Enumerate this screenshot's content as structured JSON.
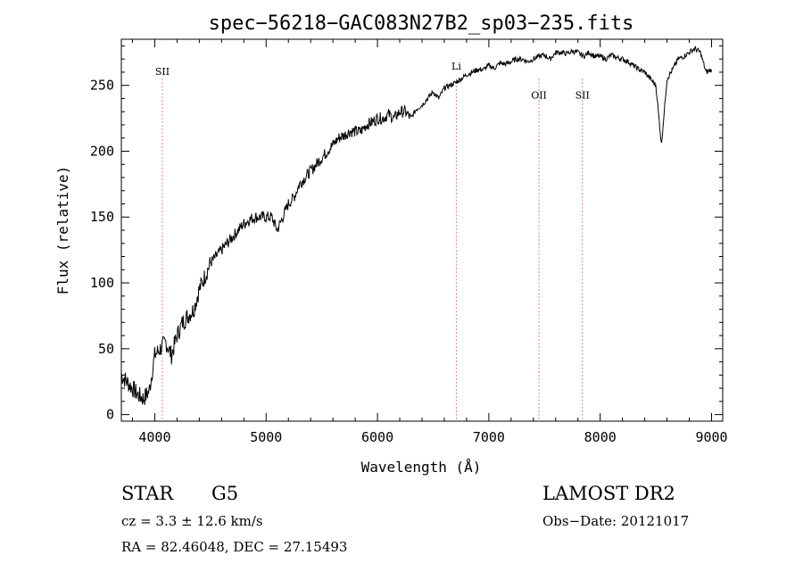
{
  "chart_data": {
    "type": "line",
    "title": "spec−56218−GAC083N27B2_sp03−235.fits",
    "xlabel": "Wavelength (Å)",
    "ylabel": "Flux (relative)",
    "xlim": [
      3700,
      9100
    ],
    "ylim": [
      -5,
      285
    ],
    "x_ticks": [
      4000,
      5000,
      6000,
      7000,
      8000,
      9000
    ],
    "y_ticks": [
      0,
      50,
      100,
      150,
      200,
      250
    ],
    "grid": false,
    "series": [
      {
        "x": [
          3700,
          3750,
          3800,
          3850,
          3900,
          3950,
          4000,
          4050,
          4100,
          4150,
          4200,
          4250,
          4300,
          4350,
          4400,
          4450,
          4500,
          4550,
          4600,
          4650,
          4700,
          4750,
          4800,
          4850,
          4900,
          4950,
          5000,
          5050,
          5100,
          5150,
          5200,
          5250,
          5300,
          5350,
          5400,
          5450,
          5500,
          5550,
          5600,
          5650,
          5700,
          5750,
          5800,
          5850,
          5900,
          5950,
          6000,
          6050,
          6100,
          6150,
          6200,
          6250,
          6300,
          6350,
          6400,
          6450,
          6500,
          6550,
          6600,
          6650,
          6700,
          6750,
          6800,
          6850,
          6900,
          6950,
          7000,
          7050,
          7100,
          7150,
          7200,
          7250,
          7300,
          7350,
          7400,
          7450,
          7500,
          7550,
          7600,
          7650,
          7700,
          7750,
          7800,
          7850,
          7900,
          7950,
          8000,
          8050,
          8100,
          8150,
          8200,
          8250,
          8300,
          8350,
          8400,
          8450,
          8500,
          8550,
          8600,
          8650,
          8700,
          8750,
          8800,
          8850,
          8900,
          8950,
          9000
        ],
        "y": [
          30,
          25,
          20,
          15,
          12,
          18,
          45,
          50,
          55,
          45,
          60,
          70,
          75,
          80,
          95,
          105,
          115,
          120,
          125,
          130,
          135,
          140,
          145,
          148,
          150,
          150,
          150,
          150,
          140,
          150,
          160,
          165,
          175,
          180,
          185,
          190,
          195,
          200,
          205,
          210,
          212,
          215,
          215,
          215,
          220,
          222,
          225,
          225,
          228,
          225,
          230,
          230,
          225,
          232,
          235,
          240,
          245,
          240,
          248,
          250,
          252,
          255,
          258,
          260,
          262,
          262,
          265,
          263,
          267,
          266,
          268,
          270,
          270,
          268,
          270,
          272,
          273,
          270,
          275,
          275,
          274,
          276,
          275,
          272,
          275,
          272,
          272,
          270,
          273,
          271,
          270,
          268,
          265,
          262,
          260,
          255,
          250,
          205,
          255,
          262,
          270,
          272,
          275,
          278,
          275,
          260,
          262
        ]
      }
    ],
    "annotations": [
      {
        "label": "SII",
        "x": 4068,
        "y": 258
      },
      {
        "label": "Li",
        "x": 6708,
        "y": 262
      },
      {
        "label": "OII",
        "x": 7450,
        "y": 240
      },
      {
        "label": "SII",
        "x": 7840,
        "y": 240
      }
    ],
    "annotation_lines": [
      4068,
      6708,
      7450,
      7840
    ]
  },
  "info": {
    "class_label": "STAR",
    "subclass_label": "G5",
    "cz_line": "cz = 3.3 ± 12.6 km/s",
    "radec_line": "RA =  82.46048, DEC =  27.15493",
    "survey": "LAMOST DR2",
    "obs_date": "Obs−Date: 20121017"
  }
}
